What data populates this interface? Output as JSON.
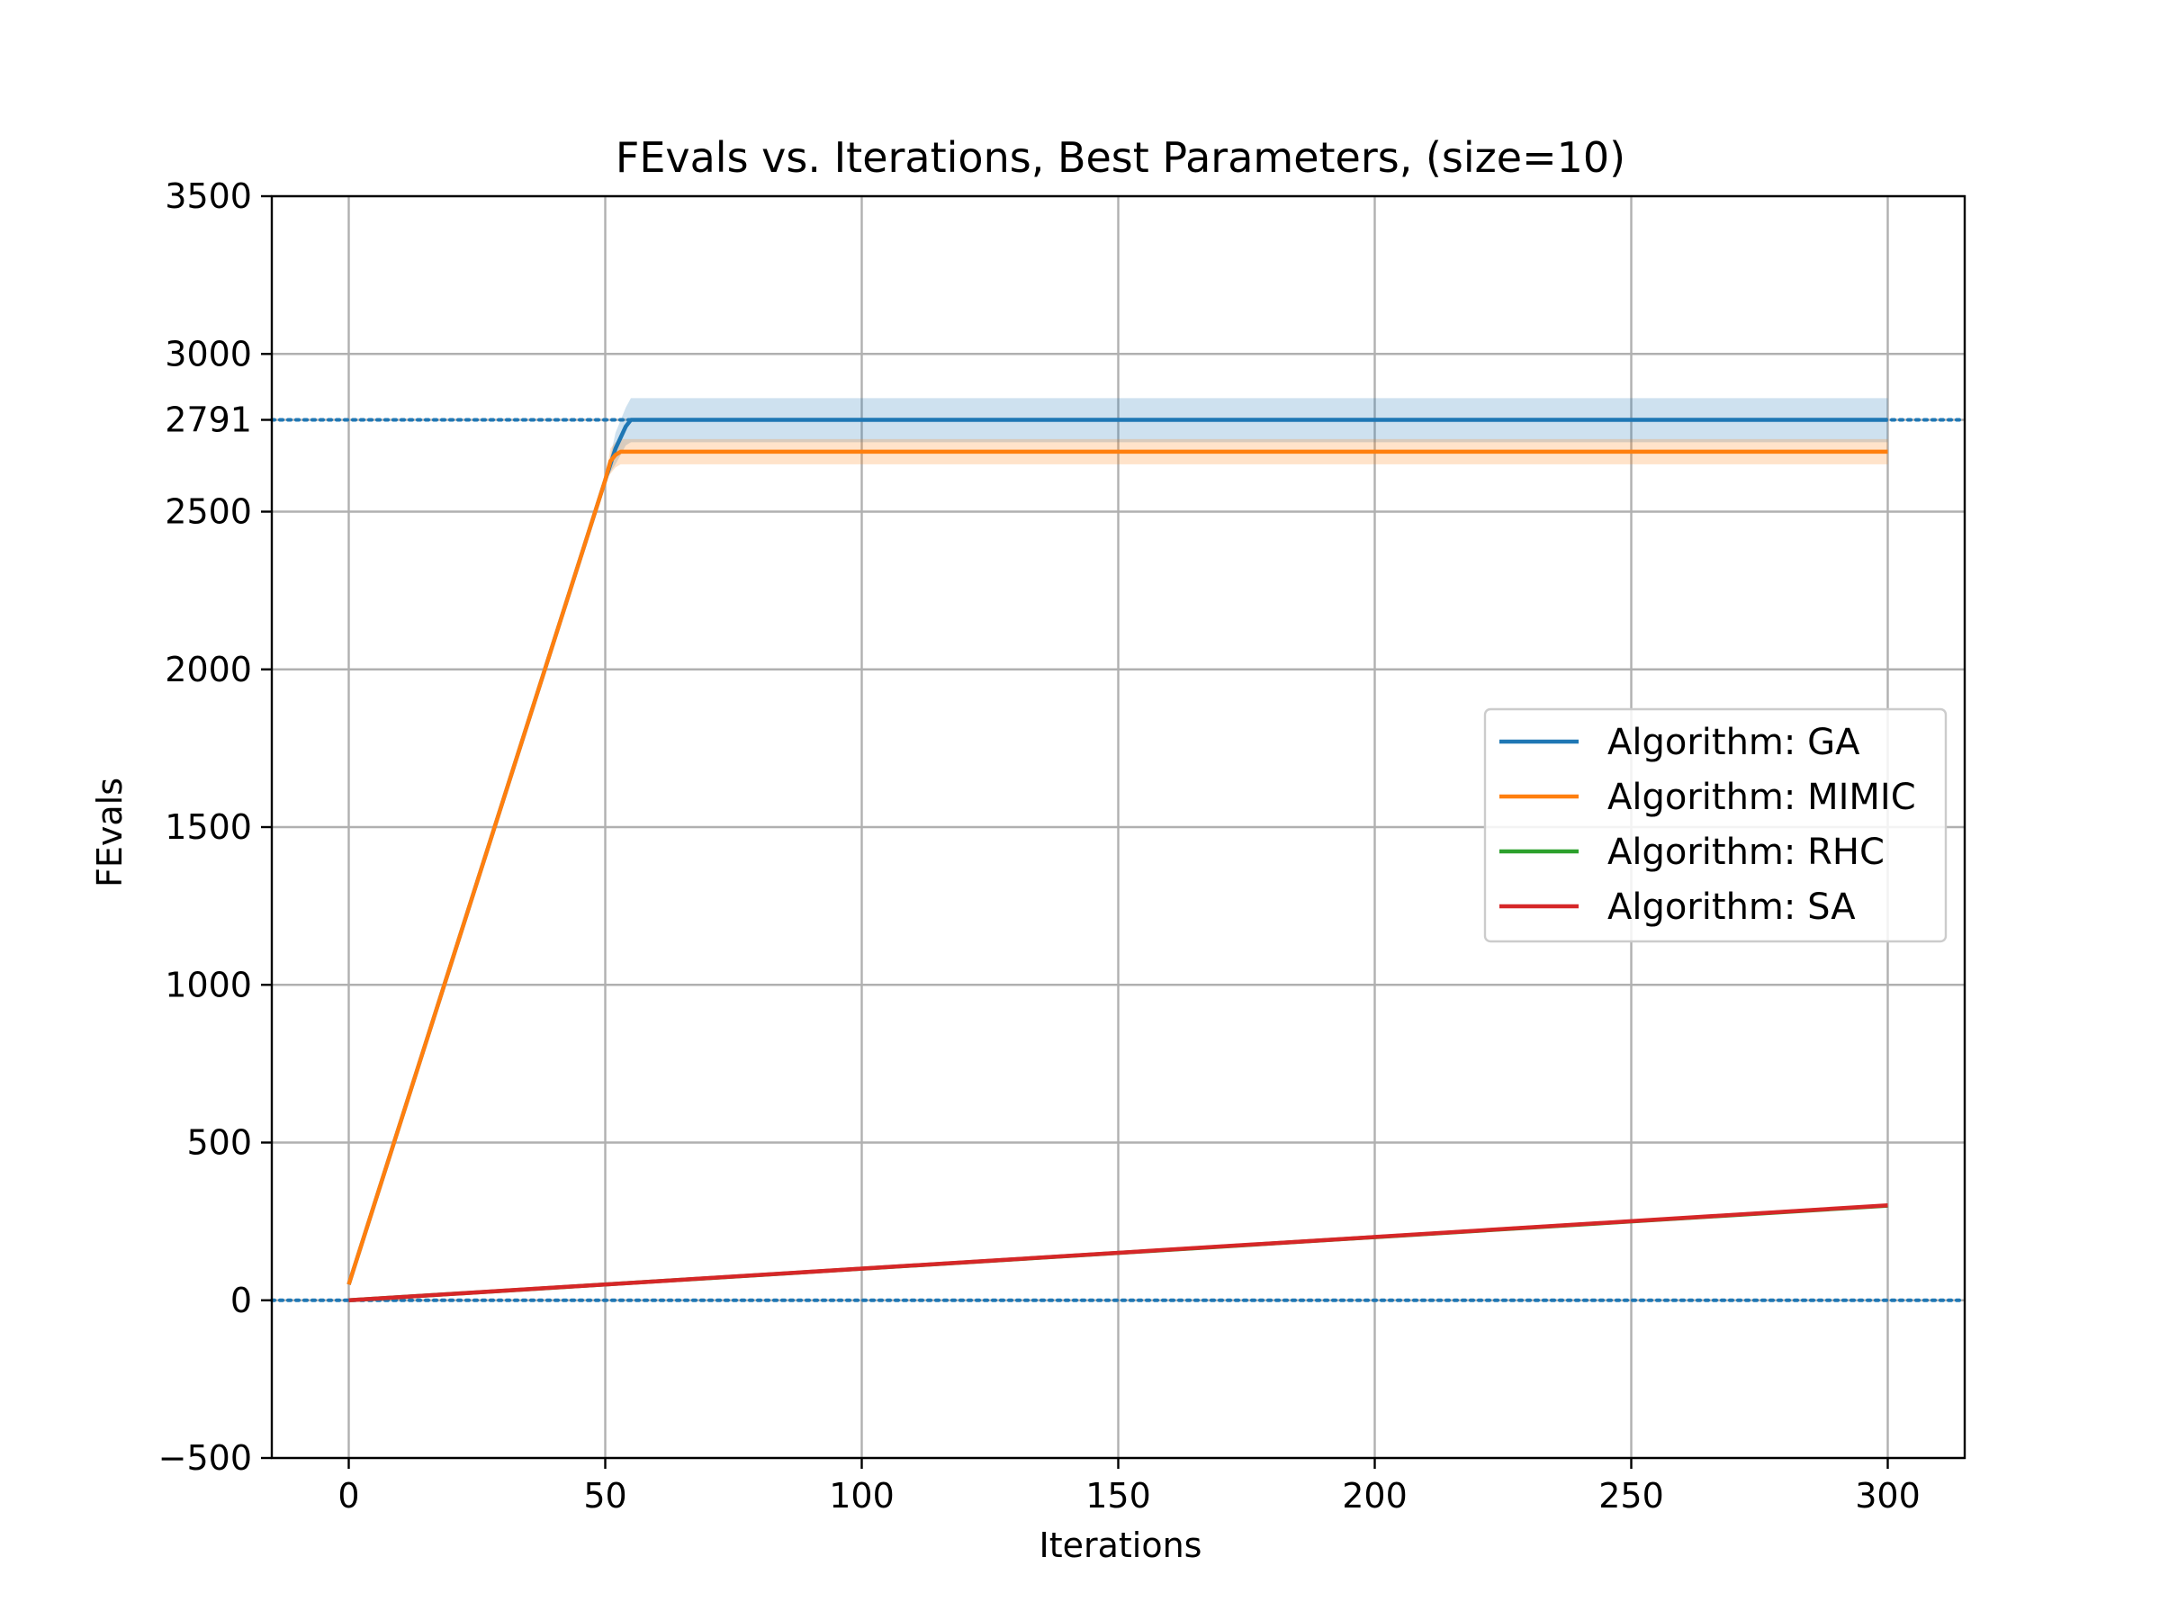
{
  "chart_data": {
    "type": "line",
    "title": "FEvals vs. Iterations, Best Parameters, (size=10)",
    "xlabel": "Iterations",
    "ylabel": "FEvals",
    "xlim": [
      -15,
      315
    ],
    "ylim": [
      -500,
      3500
    ],
    "xticks": [
      0,
      50,
      100,
      150,
      200,
      250,
      300
    ],
    "yticks": [
      -500,
      0,
      500,
      1000,
      1500,
      2000,
      2500,
      2791,
      3000,
      3500
    ],
    "ytick_labels": [
      "−500",
      "0",
      "500",
      "1000",
      "1500",
      "2000",
      "2500",
      "2791",
      "3000",
      "3500"
    ],
    "xtick_labels": [
      "0",
      "50",
      "100",
      "150",
      "200",
      "250",
      "300"
    ],
    "grid": true,
    "reference_lines": [
      {
        "y": 2791,
        "style": "dotted",
        "color": "#1f77b4"
      },
      {
        "y": 0,
        "style": "dotted",
        "color": "#1f77b4"
      }
    ],
    "legend": {
      "placement": "center-right",
      "entries": [
        "Algorithm: GA",
        "Algorithm: MIMIC",
        "Algorithm: RHC",
        "Algorithm: SA"
      ]
    },
    "series": [
      {
        "name": "Algorithm: GA",
        "color": "#1f77b4",
        "x": [
          0,
          50,
          52,
          54,
          55,
          300
        ],
        "y": [
          50,
          2600,
          2700,
          2770,
          2791,
          2791
        ],
        "band_upper": [
          50,
          2600,
          2750,
          2830,
          2860,
          2860
        ],
        "band_lower": [
          50,
          2600,
          2650,
          2710,
          2720,
          2720
        ]
      },
      {
        "name": "Algorithm: MIMIC",
        "color": "#ff7f0e",
        "x": [
          0,
          50,
          51,
          52,
          53,
          300
        ],
        "y": [
          50,
          2600,
          2660,
          2680,
          2690,
          2690
        ],
        "band_upper": [
          50,
          2600,
          2700,
          2720,
          2730,
          2730
        ],
        "band_lower": [
          50,
          2600,
          2620,
          2640,
          2650,
          2650
        ]
      },
      {
        "name": "Algorithm: RHC",
        "color": "#2ca02c",
        "x": [
          0,
          300
        ],
        "y": [
          0,
          300
        ]
      },
      {
        "name": "Algorithm: SA",
        "color": "#d62728",
        "x": [
          0,
          300
        ],
        "y": [
          0,
          301
        ]
      }
    ]
  }
}
